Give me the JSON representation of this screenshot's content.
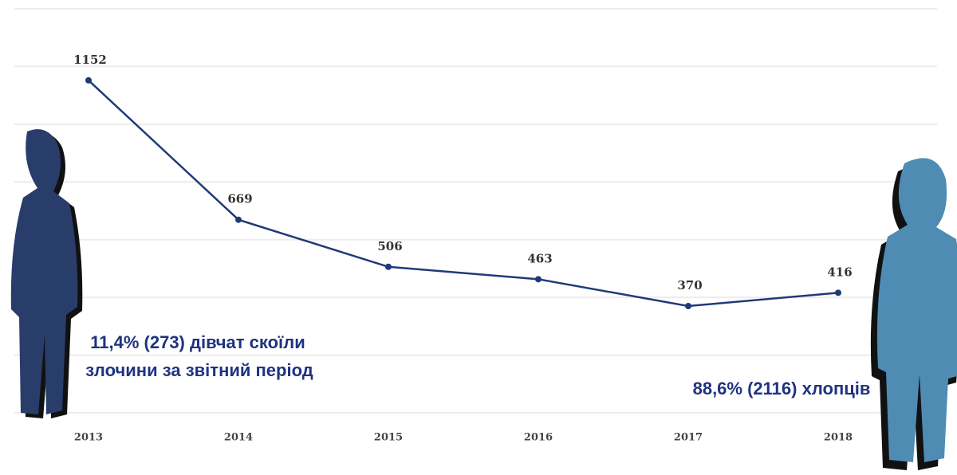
{
  "chart_data": {
    "type": "line",
    "categories": [
      "2013",
      "2014",
      "2015",
      "2016",
      "2017",
      "2018"
    ],
    "series": [
      {
        "name": null,
        "color": "#203a78",
        "values": [
          1152,
          669,
          506,
          463,
          370,
          416
        ]
      }
    ],
    "ylim": [
      0,
      1400
    ],
    "yticks": [
      0,
      200,
      400,
      600,
      800,
      1000,
      1200,
      1400
    ],
    "grid": true,
    "annotations": [
      "11,4% (273) дівчат скоїли",
      "злочини за звітний період",
      "88,6% (2116) хлопців"
    ]
  }
}
